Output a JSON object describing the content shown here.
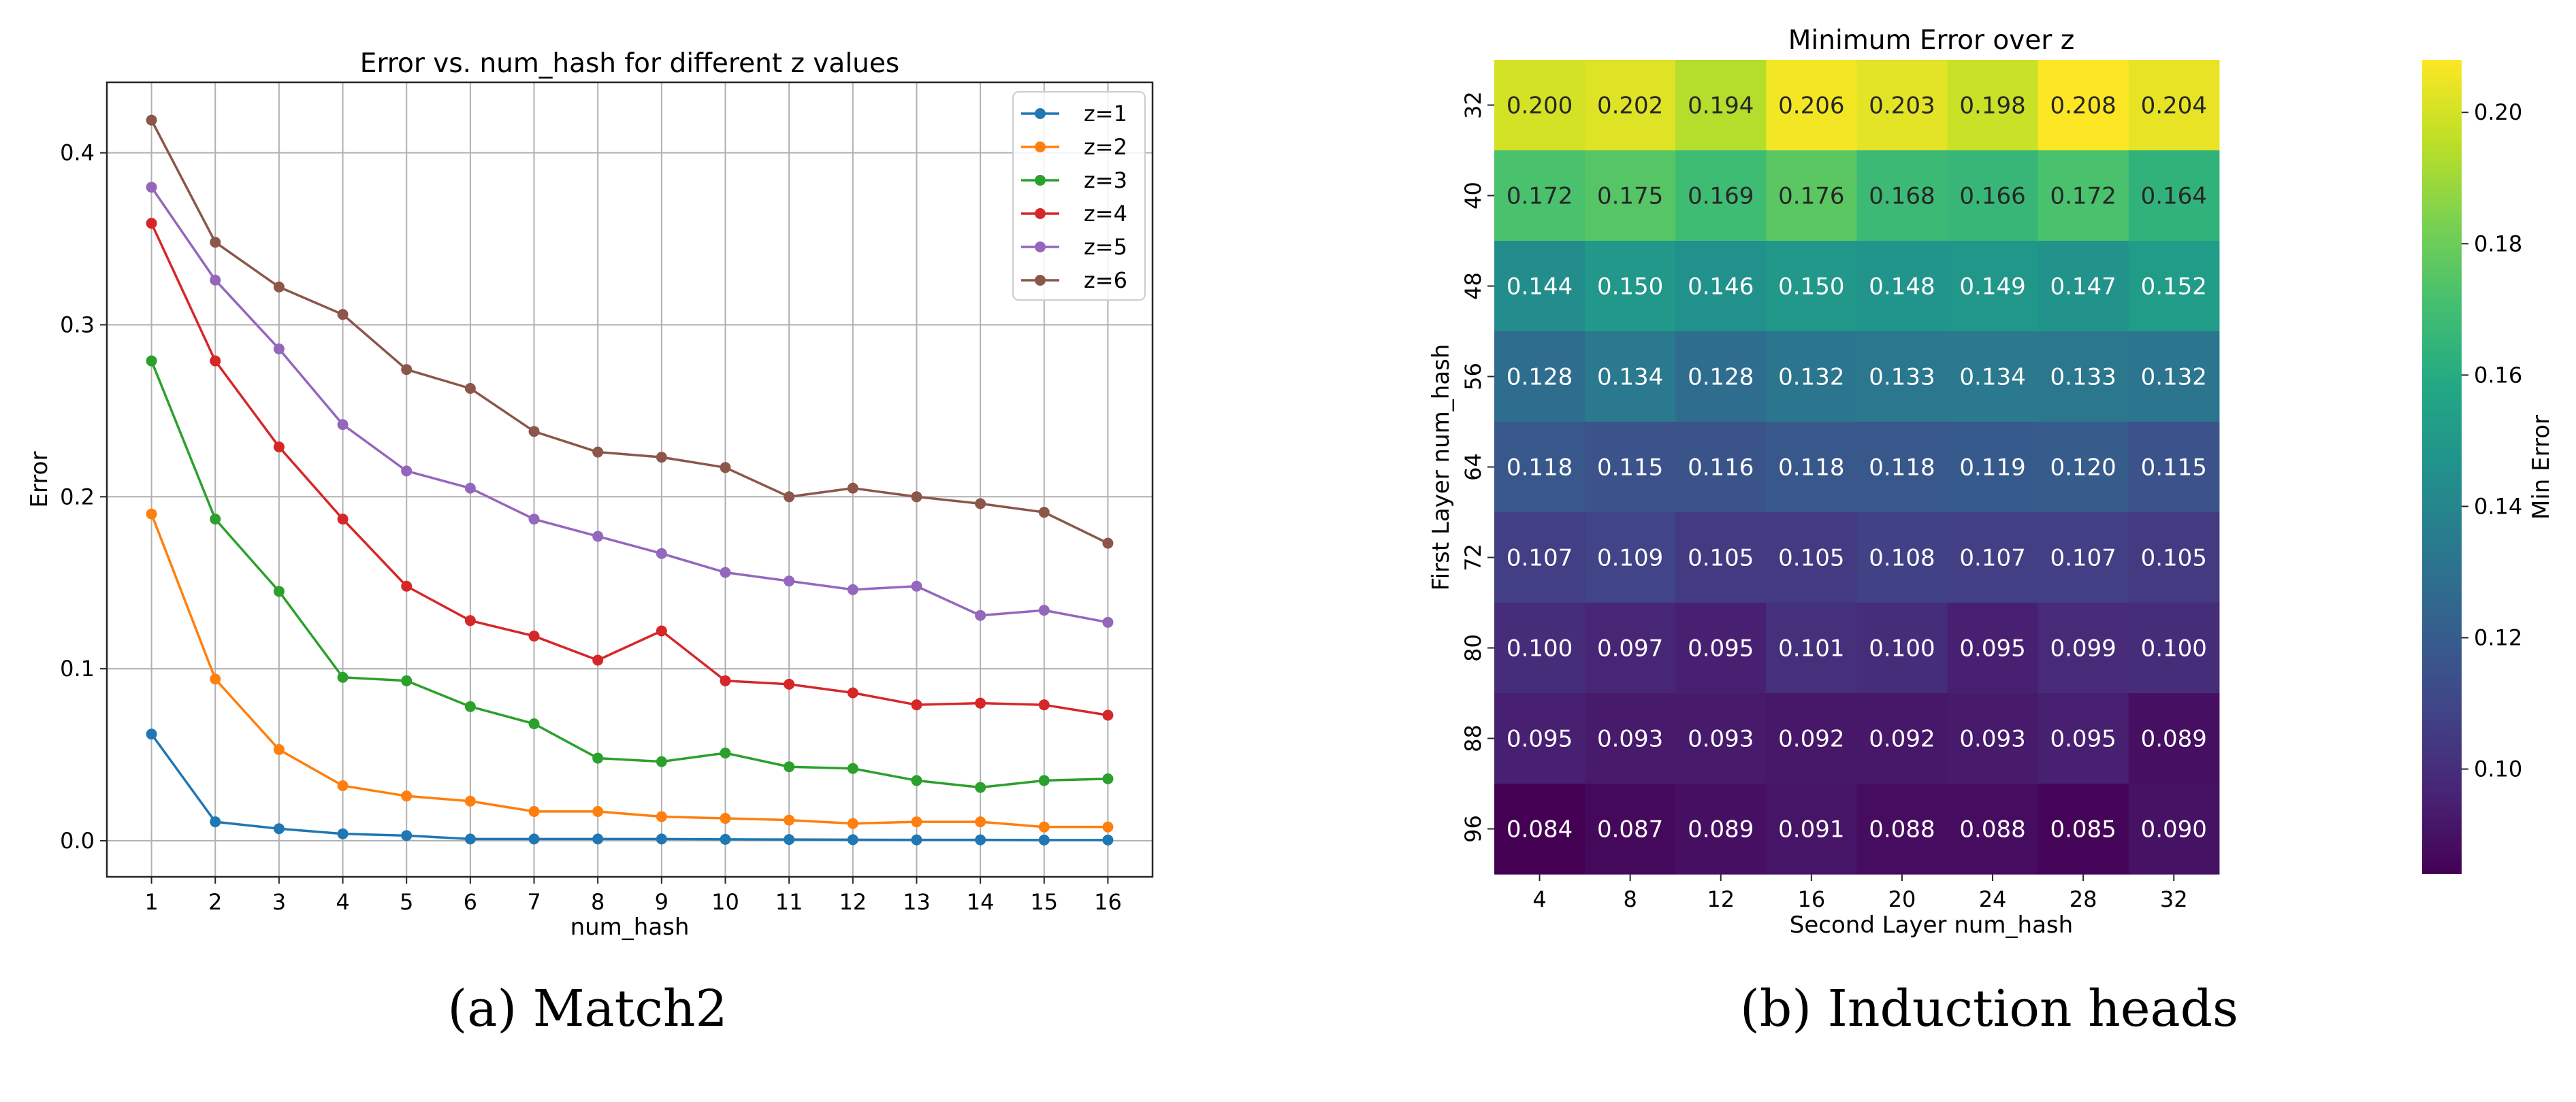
{
  "chart_data": [
    {
      "type": "line",
      "title": "Error vs. num_hash for different z values",
      "xlabel": "num_hash",
      "ylabel": "Error",
      "x": [
        1,
        2,
        3,
        4,
        5,
        6,
        7,
        8,
        9,
        10,
        11,
        12,
        13,
        14,
        15,
        16
      ],
      "xlim": [
        0.3,
        16.7
      ],
      "ylim": [
        -0.021,
        0.441
      ],
      "yticks": [
        0.0,
        0.1,
        0.2,
        0.3,
        0.4
      ],
      "ytick_labels": [
        "0.0",
        "0.1",
        "0.2",
        "0.3",
        "0.4"
      ],
      "xtick_labels": [
        "1",
        "2",
        "3",
        "4",
        "5",
        "6",
        "7",
        "8",
        "9",
        "10",
        "11",
        "12",
        "13",
        "14",
        "15",
        "16"
      ],
      "grid": true,
      "legend_position": "top-right",
      "series": [
        {
          "name": "z=1",
          "color": "#1f77b4",
          "values": [
            0.062,
            0.011,
            0.007,
            0.004,
            0.003,
            0.001,
            0.001,
            0.001,
            0.001,
            0.0008,
            0.0007,
            0.0006,
            0.0005,
            0.0005,
            0.0004,
            0.0004
          ]
        },
        {
          "name": "z=2",
          "color": "#ff7f0e",
          "values": [
            0.19,
            0.094,
            0.053,
            0.032,
            0.026,
            0.023,
            0.017,
            0.017,
            0.014,
            0.013,
            0.012,
            0.01,
            0.011,
            0.011,
            0.008,
            0.008
          ]
        },
        {
          "name": "z=3",
          "color": "#2ca02c",
          "values": [
            0.279,
            0.187,
            0.145,
            0.095,
            0.093,
            0.078,
            0.068,
            0.048,
            0.046,
            0.051,
            0.043,
            0.042,
            0.035,
            0.031,
            0.035,
            0.036
          ]
        },
        {
          "name": "z=4",
          "color": "#d62728",
          "values": [
            0.359,
            0.279,
            0.229,
            0.187,
            0.148,
            0.128,
            0.119,
            0.105,
            0.122,
            0.093,
            0.091,
            0.086,
            0.079,
            0.08,
            0.079,
            0.073
          ]
        },
        {
          "name": "z=5",
          "color": "#9467bd",
          "values": [
            0.38,
            0.326,
            0.286,
            0.242,
            0.215,
            0.205,
            0.187,
            0.177,
            0.167,
            0.156,
            0.151,
            0.146,
            0.148,
            0.131,
            0.134,
            0.127
          ]
        },
        {
          "name": "z=6",
          "color": "#8c564b",
          "values": [
            0.419,
            0.348,
            0.322,
            0.306,
            0.274,
            0.263,
            0.238,
            0.226,
            0.223,
            0.217,
            0.2,
            0.205,
            0.2,
            0.196,
            0.191,
            0.173
          ]
        }
      ]
    },
    {
      "type": "heatmap",
      "title": "Minimum Error over z",
      "xlabel": "Second Layer num_hash",
      "ylabel": "First Layer num_hash",
      "x_categories": [
        "4",
        "8",
        "12",
        "16",
        "20",
        "24",
        "28",
        "32"
      ],
      "y_categories": [
        "32",
        "40",
        "48",
        "56",
        "64",
        "72",
        "80",
        "88",
        "96"
      ],
      "values": [
        [
          "0.200",
          "0.202",
          "0.194",
          "0.206",
          "0.203",
          "0.198",
          "0.208",
          "0.204"
        ],
        [
          "0.172",
          "0.175",
          "0.169",
          "0.176",
          "0.168",
          "0.166",
          "0.172",
          "0.164"
        ],
        [
          "0.144",
          "0.150",
          "0.146",
          "0.150",
          "0.148",
          "0.149",
          "0.147",
          "0.152"
        ],
        [
          "0.128",
          "0.134",
          "0.128",
          "0.132",
          "0.133",
          "0.134",
          "0.133",
          "0.132"
        ],
        [
          "0.118",
          "0.115",
          "0.116",
          "0.118",
          "0.118",
          "0.119",
          "0.120",
          "0.115"
        ],
        [
          "0.107",
          "0.109",
          "0.105",
          "0.105",
          "0.108",
          "0.107",
          "0.107",
          "0.105"
        ],
        [
          "0.100",
          "0.097",
          "0.095",
          "0.101",
          "0.100",
          "0.095",
          "0.099",
          "0.100"
        ],
        [
          "0.095",
          "0.093",
          "0.093",
          "0.092",
          "0.092",
          "0.093",
          "0.095",
          "0.089"
        ],
        [
          "0.084",
          "0.087",
          "0.089",
          "0.091",
          "0.088",
          "0.088",
          "0.085",
          "0.090"
        ]
      ],
      "colormap": "viridis",
      "colorbar_label": "Min Error",
      "colorbar_range": [
        0.084,
        0.208
      ],
      "colorbar_ticks": [
        "0.10",
        "0.12",
        "0.14",
        "0.16",
        "0.18",
        "0.20"
      ]
    }
  ],
  "captions": {
    "left": "(a) Match2",
    "right": "(b) Induction heads"
  }
}
